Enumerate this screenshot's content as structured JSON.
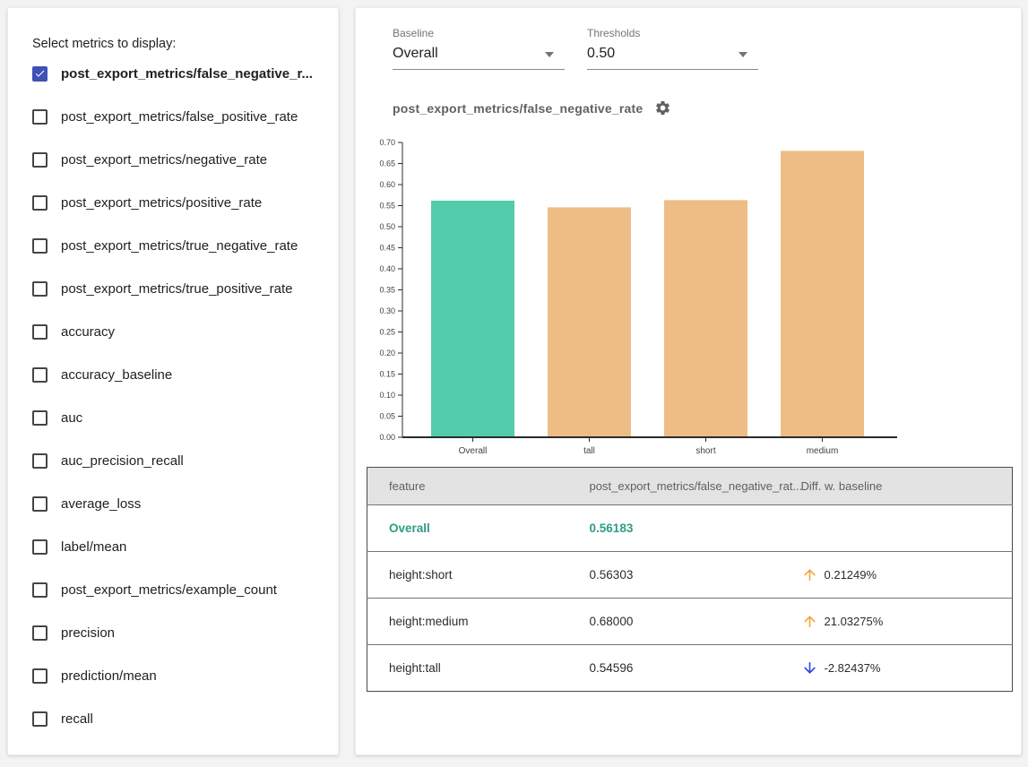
{
  "colors": {
    "checkbox_checked": "#3f51b5",
    "baseline_bar": "#52ccab",
    "slice_bar": "#eebd85",
    "baseline_text": "#2f9c84",
    "up_arrow": "#f3a438",
    "down_arrow": "#2842e0",
    "axis": "#2b2b2b",
    "table_header_bg": "#e3e3e3"
  },
  "sidebar": {
    "title": "Select metrics to display:",
    "metrics": [
      {
        "label": "post_export_metrics/false_negative_r...",
        "checked": true
      },
      {
        "label": "post_export_metrics/false_positive_rate",
        "checked": false
      },
      {
        "label": "post_export_metrics/negative_rate",
        "checked": false
      },
      {
        "label": "post_export_metrics/positive_rate",
        "checked": false
      },
      {
        "label": "post_export_metrics/true_negative_rate",
        "checked": false
      },
      {
        "label": "post_export_metrics/true_positive_rate",
        "checked": false
      },
      {
        "label": "accuracy",
        "checked": false
      },
      {
        "label": "accuracy_baseline",
        "checked": false
      },
      {
        "label": "auc",
        "checked": false
      },
      {
        "label": "auc_precision_recall",
        "checked": false
      },
      {
        "label": "average_loss",
        "checked": false
      },
      {
        "label": "label/mean",
        "checked": false
      },
      {
        "label": "post_export_metrics/example_count",
        "checked": false
      },
      {
        "label": "precision",
        "checked": false
      },
      {
        "label": "prediction/mean",
        "checked": false
      },
      {
        "label": "recall",
        "checked": false
      }
    ]
  },
  "controls": {
    "baseline": {
      "label": "Baseline",
      "value": "Overall"
    },
    "thresholds": {
      "label": "Thresholds",
      "value": "0.50"
    }
  },
  "chart_data": {
    "type": "bar",
    "title": "post_export_metrics/false_negative_rate",
    "categories": [
      "Overall",
      "tall",
      "short",
      "medium"
    ],
    "values": [
      0.56183,
      0.54596,
      0.56303,
      0.68
    ],
    "bar_colors": [
      "#52ccab",
      "#eebd85",
      "#eebd85",
      "#eebd85"
    ],
    "ylim": [
      0.0,
      0.7
    ],
    "ytick_step": 0.05,
    "grid": false,
    "legend": "none",
    "xlabel": "",
    "ylabel": ""
  },
  "table": {
    "headers": [
      "feature",
      "post_export_metrics/false_negative_rat...",
      "Diff. w. baseline"
    ],
    "rows": [
      {
        "feature": "Overall",
        "value": "0.56183",
        "diff": "",
        "direction": "none",
        "baseline": true
      },
      {
        "feature": "height:short",
        "value": "0.56303",
        "diff": "0.21249%",
        "direction": "up",
        "baseline": false
      },
      {
        "feature": "height:medium",
        "value": "0.68000",
        "diff": "21.03275%",
        "direction": "up",
        "baseline": false
      },
      {
        "feature": "height:tall",
        "value": "0.54596",
        "diff": "-2.82437%",
        "direction": "down",
        "baseline": false
      }
    ]
  }
}
